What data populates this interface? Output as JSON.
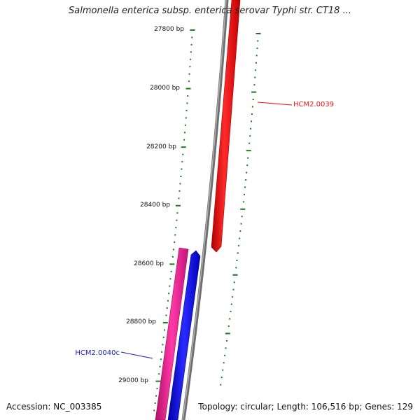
{
  "map": {
    "title": "Salmonella enterica subsp. enterica serovar Typhi str. CT18 ...",
    "accession_text": "Accession: NC_003385",
    "summary_text": "Topology: circular; Length: 106,516 bp; Genes: 129"
  },
  "scale_labels": [
    "27800 bp",
    "28000 bp",
    "28200 bp",
    "28400 bp",
    "28600 bp",
    "28800 bp",
    "29000 bp"
  ],
  "features": [
    {
      "label": "HCM2.0039",
      "color": "#ee1111"
    },
    {
      "label": "HCM2.0040c",
      "color": "#1a1ab0"
    }
  ],
  "colors": {
    "backbone": "#7a7a7a",
    "gene_forward_red": "#ff1010",
    "gene_reverse_pink": "#ee1f8c",
    "gene_reverse_blue": "#1010ee",
    "tick_green": "#1a7a1a"
  }
}
